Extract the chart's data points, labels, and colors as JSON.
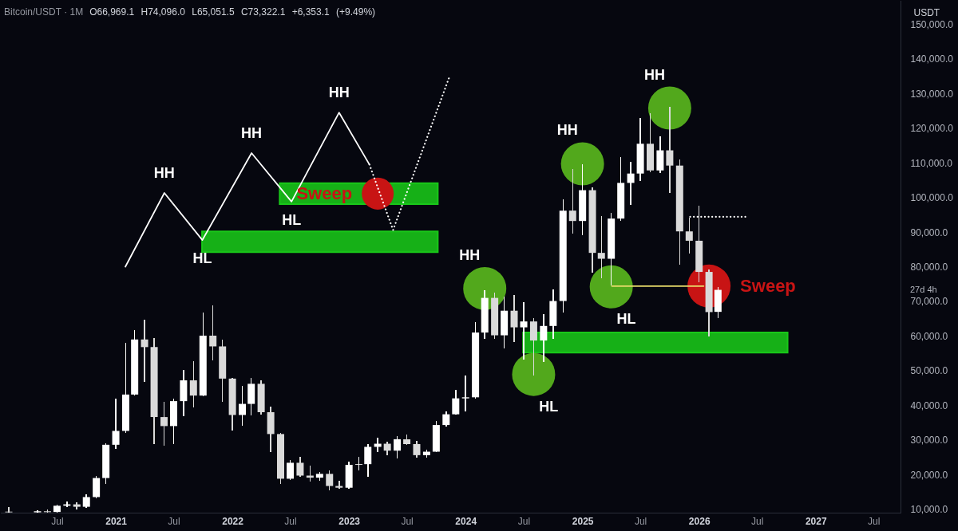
{
  "chart_data": {
    "type": "candlestick",
    "title": "Bitcoin/USDT · 1M",
    "subtitle": "O66,969.1 H74,096.0 L65,051.5 C73,322.1 +6,353.1 (+9.49%)",
    "ylabel": "USDT",
    "x": [
      "2020-02",
      "2020-05",
      "2020-06",
      "2020-07",
      "2020-08",
      "2020-09",
      "2020-10",
      "2020-11",
      "2020-12",
      "2021-01",
      "2021-02",
      "2021-03",
      "2021-04",
      "2021-05",
      "2021-06",
      "2021-07",
      "2021-08",
      "2021-09",
      "2021-10",
      "2021-11",
      "2021-12",
      "2022-01",
      "2022-02",
      "2022-03",
      "2022-04",
      "2022-05",
      "2022-06",
      "2022-07",
      "2022-08",
      "2022-09",
      "2022-10",
      "2022-11",
      "2022-12",
      "2023-01",
      "2023-02",
      "2023-03",
      "2023-04",
      "2023-05",
      "2023-06",
      "2023-07",
      "2023-08",
      "2023-09",
      "2023-10",
      "2023-11",
      "2023-12",
      "2024-01",
      "2024-02",
      "2024-03",
      "2024-04",
      "2024-05",
      "2024-06",
      "2024-07",
      "2024-08",
      "2024-09",
      "2024-10",
      "2024-11",
      "2024-12",
      "2025-01",
      "2025-02",
      "2025-03",
      "2025-04",
      "2025-05",
      "2025-06",
      "2025-07",
      "2025-08",
      "2025-09",
      "2025-10",
      "2025-11",
      "2025-12",
      "2026-01",
      "2026-02",
      "2026-03"
    ],
    "ohlc": [
      [
        9300,
        10600,
        9050,
        9100
      ],
      [
        9100,
        9800,
        9050,
        9400
      ],
      [
        9400,
        10000,
        9050,
        9150
      ],
      [
        9200,
        11400,
        9050,
        11000
      ],
      [
        11000,
        12300,
        10500,
        11400
      ],
      [
        11400,
        12000,
        10000,
        10700
      ],
      [
        10700,
        14200,
        10400,
        13500
      ],
      [
        13500,
        19600,
        13200,
        19000
      ],
      [
        19000,
        29000,
        17300,
        28600
      ],
      [
        28600,
        41800,
        27500,
        32600
      ],
      [
        32600,
        58100,
        32000,
        43100
      ],
      [
        43100,
        61600,
        42900,
        59000
      ],
      [
        59000,
        64600,
        46800,
        56800
      ],
      [
        56800,
        59300,
        28800,
        36600
      ],
      [
        36600,
        40900,
        28400,
        34000
      ],
      [
        34000,
        41800,
        28800,
        41200
      ],
      [
        41200,
        50100,
        36800,
        47200
      ],
      [
        47200,
        52700,
        39300,
        42800
      ],
      [
        42800,
        66800,
        42600,
        60100
      ],
      [
        60100,
        68800,
        52900,
        57000
      ],
      [
        57000,
        58900,
        40900,
        47700
      ],
      [
        47700,
        47900,
        32600,
        37200
      ],
      [
        37200,
        45500,
        34200,
        40400
      ],
      [
        40400,
        48000,
        37100,
        46200
      ],
      [
        46200,
        47200,
        37400,
        38000
      ],
      [
        38000,
        39700,
        26500,
        31700
      ],
      [
        31700,
        32000,
        17400,
        18800
      ],
      [
        18800,
        24200,
        18400,
        23400
      ],
      [
        23400,
        25000,
        19400,
        19700
      ],
      [
        19700,
        22500,
        18000,
        19100
      ],
      [
        19100,
        20800,
        18200,
        20200
      ],
      [
        20200,
        21200,
        15400,
        16700
      ],
      [
        16700,
        18100,
        16000,
        16200
      ],
      [
        16200,
        23800,
        16000,
        22800
      ],
      [
        22800,
        25000,
        21100,
        23000
      ],
      [
        23000,
        28800,
        19300,
        28000
      ],
      [
        28000,
        30700,
        26500,
        28900
      ],
      [
        28900,
        29600,
        25600,
        26900
      ],
      [
        26900,
        31200,
        24600,
        30200
      ],
      [
        30200,
        31500,
        28600,
        28800
      ],
      [
        28800,
        29700,
        24800,
        25600
      ],
      [
        25600,
        27100,
        24800,
        26600
      ],
      [
        26600,
        35500,
        26400,
        34300
      ],
      [
        34300,
        38200,
        33800,
        37400
      ],
      [
        37400,
        44500,
        37300,
        42000
      ],
      [
        42000,
        48700,
        38200,
        42300
      ],
      [
        42300,
        63900,
        41900,
        61000
      ],
      [
        61000,
        73300,
        59100,
        71000
      ],
      [
        71000,
        72500,
        59100,
        60200
      ],
      [
        60200,
        71400,
        56400,
        67300
      ],
      [
        67300,
        71900,
        58300,
        62500
      ],
      [
        62500,
        69800,
        53300,
        64200
      ],
      [
        64200,
        65200,
        48700,
        58700
      ],
      [
        58700,
        66400,
        52600,
        62900
      ],
      [
        62900,
        73400,
        59100,
        70100
      ],
      [
        70100,
        99400,
        66800,
        96200
      ],
      [
        96200,
        108200,
        89500,
        93200
      ],
      [
        93200,
        109500,
        89000,
        102100
      ],
      [
        102100,
        102800,
        78300,
        84000
      ],
      [
        84000,
        94600,
        76700,
        82300
      ],
      [
        82300,
        95500,
        74500,
        93900
      ],
      [
        93900,
        111600,
        93300,
        104200
      ],
      [
        104200,
        110300,
        97800,
        106900
      ],
      [
        106900,
        123000,
        104700,
        115500
      ],
      [
        115500,
        124300,
        107300,
        107800
      ],
      [
        107800,
        117600,
        107000,
        113600
      ],
      [
        113600,
        126200,
        101300,
        109200
      ],
      [
        109200,
        110900,
        80600,
        90200
      ],
      [
        90200,
        94100,
        83700,
        87500
      ],
      [
        87500,
        97700,
        75600,
        78500
      ],
      [
        78500,
        79100,
        59900,
        66900
      ],
      [
        66969.1,
        74096.0,
        65051.5,
        73322.1
      ]
    ],
    "colors": [
      "#dadada",
      "#ffffff",
      "#dadada",
      "#ffffff",
      "#ffffff",
      "#dadada",
      "#ffffff",
      "#ffffff",
      "#ffffff",
      "#ffffff",
      "#ffffff",
      "#ffffff",
      "#dadada",
      "#dadada",
      "#dadada",
      "#ffffff",
      "#ffffff",
      "#dadada",
      "#ffffff",
      "#dadada",
      "#dadada",
      "#dadada",
      "#ffffff",
      "#ffffff",
      "#dadada",
      "#dadada",
      "#dadada",
      "#ffffff",
      "#dadada",
      "#dadada",
      "#ffffff",
      "#dadada",
      "#dadada",
      "#ffffff",
      "#ffffff",
      "#ffffff",
      "#ffffff",
      "#dadada",
      "#ffffff",
      "#dadada",
      "#dadada",
      "#ffffff",
      "#ffffff",
      "#ffffff",
      "#ffffff",
      "#ffffff",
      "#ffffff",
      "#ffffff",
      "#dadada",
      "#ffffff",
      "#dadada",
      "#ffffff",
      "#dadada",
      "#ffffff",
      "#ffffff",
      "#ffffff",
      "#dadada",
      "#ffffff",
      "#dadada",
      "#dadada",
      "#ffffff",
      "#ffffff",
      "#ffffff",
      "#ffffff",
      "#dadada",
      "#ffffff",
      "#dadada",
      "#dadada",
      "#dadada",
      "#dadada",
      "#dadada",
      "#ffffff"
    ],
    "series": [
      {
        "type": "area",
        "color": "#19c819",
        "x": [
          "2021-09-28",
          "2023-10-06"
        ],
        "values": [
          null,
          null
        ],
        "lower": [
          84200,
          84200
        ],
        "upper": [
          90200,
          90200
        ]
      },
      {
        "type": "area",
        "color": "#19c819",
        "x": [
          "2022-05-29",
          "2023-10-06"
        ],
        "values": [
          null,
          null
        ],
        "lower": [
          98100,
          98100
        ],
        "upper": [
          104100,
          104100
        ]
      },
      {
        "type": "area",
        "color": "#19c819",
        "x": [
          "2024-06-29",
          "2026-10-05"
        ],
        "values": [
          null,
          null
        ],
        "lower": [
          55200,
          55200
        ],
        "upper": [
          61000,
          61000
        ]
      },
      {
        "type": "line",
        "color": "#ffffff",
        "x": [
          "2021-01-31",
          "2021-06-02",
          "2021-09-29",
          "2022-03-02",
          "2022-07-05",
          "2022-12-01",
          "2023-03-06"
        ],
        "values": [
          80000,
          101300,
          87700,
          112800,
          98800,
          124500,
          109500
        ]
      },
      {
        "type": "line",
        "color": "#ffffff",
        "line_style": "dotted",
        "x": [
          "2023-03-06",
          "2023-05-19",
          "2023-11-12"
        ],
        "values": [
          109500,
          90600,
          135000
        ]
      },
      {
        "type": "line",
        "color": "#e8dc6a",
        "x": [
          "2025-04-03",
          "2026-01-15"
        ],
        "values": [
          74400,
          74400
        ]
      },
      {
        "type": "line",
        "color": "#ffffff",
        "line_style": "dotted",
        "x": [
          "2025-12-04",
          "2026-05-28"
        ],
        "values": [
          94400,
          94400
        ]
      },
      {
        "type": "bubble",
        "color": "#52a81c",
        "x": [
          "2024-03-01",
          "2024-08-01",
          "2025-01-01",
          "2025-04-01",
          "2025-10-01"
        ],
        "values": [
          73700,
          48900,
          109700,
          74200,
          125800
        ],
        "sizes": [
          1,
          1,
          1,
          1,
          1
        ]
      },
      {
        "type": "bubble",
        "name": "Sweep",
        "color": "#c81414",
        "x": [
          "2023-04-01",
          "2026-02-01"
        ],
        "values": [
          101100,
          74400
        ],
        "sizes": [
          0.55,
          1
        ]
      }
    ],
    "annotations": [
      {
        "text": "HH",
        "x": "2021-06-02",
        "y": 101300
      },
      {
        "text": "HL",
        "x": "2021-09-29",
        "y": 87700
      },
      {
        "text": "HH",
        "x": "2022-03-02",
        "y": 112800
      },
      {
        "text": "HL",
        "x": "2022-07-05",
        "y": 98800
      },
      {
        "text": "HH",
        "x": "2022-12-01",
        "y": 124500
      },
      {
        "text": "HH",
        "x": "2024-03-01",
        "y": 73700
      },
      {
        "text": "HL",
        "x": "2024-08-01",
        "y": 48900
      },
      {
        "text": "HH",
        "x": "2025-01-01",
        "y": 109700
      },
      {
        "text": "HL",
        "x": "2025-04-01",
        "y": 74200
      },
      {
        "text": "HH",
        "x": "2025-10-01",
        "y": 125800
      },
      "27d 4h"
    ],
    "xlim": [
      "2020-01-17",
      "2027-09-11"
    ],
    "ylim": [
      9000,
      157000
    ],
    "xticks": [
      {
        "value": "2020-07",
        "label": "Jul"
      },
      {
        "value": "2021",
        "label": "2021"
      },
      {
        "value": "2021-07",
        "label": "Jul"
      },
      {
        "value": "2022",
        "label": "2022"
      },
      {
        "value": "2022-07",
        "label": "Jul"
      },
      {
        "value": "2023",
        "label": "2023"
      },
      {
        "value": "2023-07",
        "label": "Jul"
      },
      {
        "value": "2024",
        "label": "2024"
      },
      {
        "value": "2024-07",
        "label": "Jul"
      },
      {
        "value": "2025",
        "label": "2025"
      },
      {
        "value": "2025-07",
        "label": "Jul"
      },
      {
        "value": "2026",
        "label": "2026"
      },
      {
        "value": "2026-07",
        "label": "Jul"
      },
      {
        "value": "2027",
        "label": "2027"
      },
      {
        "value": "2027-07",
        "label": "Jul"
      }
    ],
    "yticks": [
      {
        "value": 10000,
        "label": "10,000.0"
      },
      {
        "value": 20000,
        "label": "20,000.0"
      },
      {
        "value": 30000,
        "label": "30,000.0"
      },
      {
        "value": 40000,
        "label": "40,000.0"
      },
      {
        "value": 50000,
        "label": "50,000.0"
      },
      {
        "value": 60000,
        "label": "60,000.0"
      },
      {
        "value": 70000,
        "label": "70,000.0"
      },
      {
        "value": 80000,
        "label": "80,000.0"
      },
      {
        "value": 90000,
        "label": "90,000.0"
      },
      {
        "value": 100000,
        "label": "100,000.0"
      },
      {
        "value": 110000,
        "label": "110,000.0"
      },
      {
        "value": 120000,
        "label": "120,000.0"
      },
      {
        "value": 130000,
        "label": "130,000.0"
      },
      {
        "value": 140000,
        "label": "140,000.0"
      },
      {
        "value": 150000,
        "label": "150,000.0"
      }
    ]
  }
}
